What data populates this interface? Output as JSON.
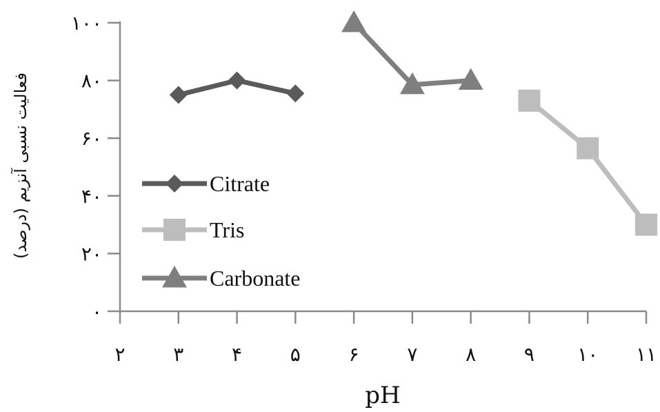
{
  "chart_data": {
    "type": "line",
    "xlabel": "pH",
    "ylabel": "فعالیت نسبی آنزیم (درصد)",
    "x_ticks": [
      2,
      3,
      4,
      5,
      6,
      7,
      8,
      9,
      10,
      11
    ],
    "x_tick_labels": [
      "۲",
      "۳",
      "۴",
      "۵",
      "۶",
      "۷",
      "۸",
      "۹",
      "۱۰",
      "۱۱"
    ],
    "y_ticks": [
      0,
      20,
      40,
      60,
      80,
      100
    ],
    "y_tick_labels": [
      "۰",
      "۲۰",
      "۴۰",
      "۶۰",
      "۸۰",
      "۱۰۰"
    ],
    "xlim": [
      2,
      11
    ],
    "ylim": [
      0,
      100
    ],
    "grid": false,
    "legend_position": "left",
    "series": [
      {
        "name": "Citrate",
        "x": [
          3,
          4,
          5
        ],
        "y": [
          75,
          80,
          75.5
        ],
        "color": "#5a5a5a",
        "marker": "diamond"
      },
      {
        "name": "Tris",
        "x": [
          9,
          10,
          11
        ],
        "y": [
          73,
          56.5,
          30
        ],
        "color": "#bdbdbd",
        "marker": "square"
      },
      {
        "name": "Carbonate",
        "x": [
          6,
          7,
          8
        ],
        "y": [
          100,
          78.5,
          80
        ],
        "color": "#7f7f7f",
        "marker": "triangle"
      }
    ]
  }
}
